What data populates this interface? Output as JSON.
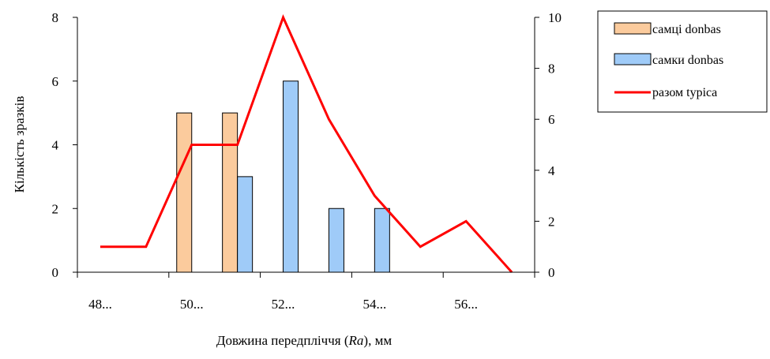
{
  "chart_data": {
    "type": "bar",
    "categories": [
      "48...",
      "",
      "50...",
      "",
      "52...",
      "",
      "54...",
      "",
      "56...",
      ""
    ],
    "series": [
      {
        "name": "самці donbas",
        "type": "bar",
        "axis": "left",
        "values": [
          0,
          0,
          5,
          5,
          0,
          0,
          0,
          0,
          0,
          0
        ],
        "color": "#FBCB9D"
      },
      {
        "name": "самки donbas",
        "type": "bar",
        "axis": "left",
        "values": [
          0,
          0,
          0,
          3,
          6,
          2,
          2,
          0,
          0,
          0
        ],
        "color": "#9FCBF8"
      },
      {
        "name": "разом typica",
        "type": "line",
        "axis": "right",
        "values": [
          1,
          1,
          5,
          5,
          10,
          6,
          3,
          1,
          2,
          0
        ],
        "color": "#FF0000"
      }
    ],
    "x_tick_labels": [
      "48...",
      "50...",
      "52...",
      "54...",
      "56..."
    ],
    "xlabel_parts": [
      "Довжина передпліччя (",
      "Ra",
      "), мм"
    ],
    "ylabel": "Кількість зразків",
    "ylim": [
      0,
      8
    ],
    "y_ticks": [
      0,
      2,
      4,
      6,
      8
    ],
    "y2lim": [
      0,
      10
    ],
    "y2_ticks": [
      0,
      2,
      4,
      6,
      8,
      10
    ],
    "legend_position": "top-right",
    "grid": false
  }
}
